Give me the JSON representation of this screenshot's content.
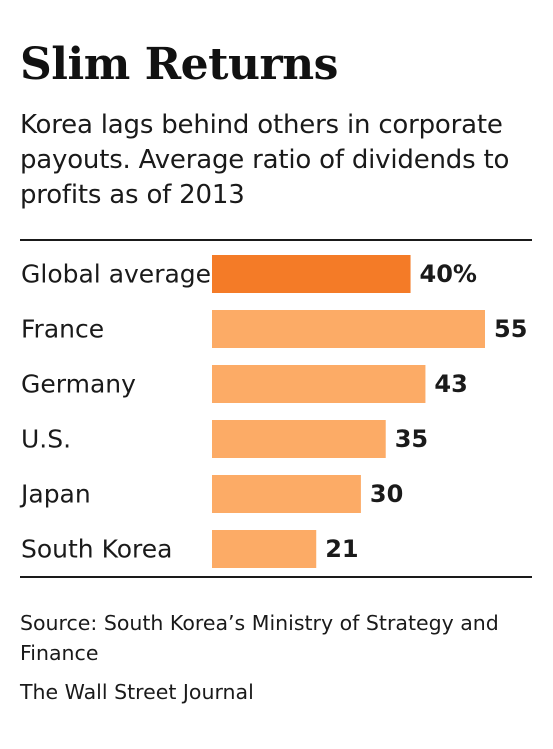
{
  "chart_data": {
    "type": "bar",
    "orientation": "horizontal",
    "title": "Slim Returns",
    "subtitle": "Korea lags behind others in corporate payouts. Average ratio of dividends to profits as of 2013",
    "categories": [
      "Global average",
      "France",
      "Germany",
      "U.S.",
      "Japan",
      "South Korea"
    ],
    "values": [
      40,
      55,
      43,
      35,
      30,
      21
    ],
    "value_labels": [
      "40%",
      "55",
      "43",
      "35",
      "30",
      "21"
    ],
    "xlim": [
      0,
      55
    ],
    "grid": false,
    "source": "Source: South Korea’s Ministry of Strategy and Finance",
    "credit": "The Wall Street Journal",
    "colors": {
      "highlight": "#f47b27",
      "bar": "#fcab66",
      "text": "#1a1a1a",
      "rule": "#1a1a1a"
    },
    "highlight_index": 0
  }
}
